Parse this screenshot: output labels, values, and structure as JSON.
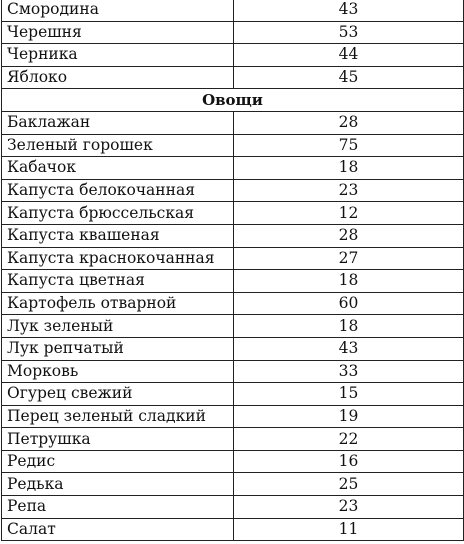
{
  "rows_top": [
    {
      "name": "Смородина",
      "value": "43"
    },
    {
      "name": "Черешня",
      "value": "53"
    },
    {
      "name": "Черника",
      "value": "44"
    },
    {
      "name": "Яблоко",
      "value": "45"
    }
  ],
  "section_title": "Овощи",
  "rows_bottom": [
    {
      "name": "Баклажан",
      "value": "28"
    },
    {
      "name": "Зеленый горошек",
      "value": "75"
    },
    {
      "name": "Кабачок",
      "value": "18"
    },
    {
      "name": "Капуста белокочанная",
      "value": "23"
    },
    {
      "name": "Капуста брюссельская",
      "value": "12"
    },
    {
      "name": "Капуста квашеная",
      "value": "28"
    },
    {
      "name": "Капуста краснокочанная",
      "value": "27"
    },
    {
      "name": "Капуста цветная",
      "value": "18"
    },
    {
      "name": "Картофель отварной",
      "value": "60"
    },
    {
      "name": "Лук зеленый",
      "value": "18"
    },
    {
      "name": "Лук репчатый",
      "value": "43"
    },
    {
      "name": "Морковь",
      "value": "33"
    },
    {
      "name": "Огурец свежий",
      "value": "15"
    },
    {
      "name": "Перец зеленый сладкий",
      "value": "19"
    },
    {
      "name": "Петрушка",
      "value": "22"
    },
    {
      "name": "Редис",
      "value": "16"
    },
    {
      "name": "Редька",
      "value": "25"
    },
    {
      "name": "Репа",
      "value": "23"
    },
    {
      "name": "Салат",
      "value": "11"
    }
  ]
}
